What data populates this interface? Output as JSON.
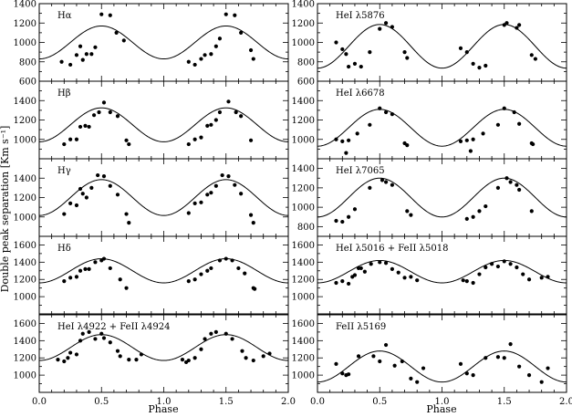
{
  "figure": {
    "ylabel": "Double peak separation [Km s⁻¹]",
    "xlabel": "Phase"
  },
  "chart_data": [
    {
      "type": "scatter",
      "column": "left",
      "row": 0,
      "title": "Hα",
      "xlim": [
        0,
        2
      ],
      "ylim": [
        600,
        1400
      ],
      "yticks": [
        600,
        800,
        1000,
        1200,
        1400
      ],
      "xlabel": "",
      "ylabel": "",
      "fit": {
        "mean": 1000,
        "amplitude": 170,
        "phase_of_max": 0.5
      },
      "points": [
        [
          0.18,
          800
        ],
        [
          0.25,
          770
        ],
        [
          0.3,
          870
        ],
        [
          0.33,
          960
        ],
        [
          0.35,
          820
        ],
        [
          0.38,
          880
        ],
        [
          0.42,
          880
        ],
        [
          0.45,
          950
        ],
        [
          0.5,
          1290
        ],
        [
          0.57,
          1280
        ],
        [
          0.62,
          1100
        ],
        [
          0.68,
          1020
        ],
        [
          1.2,
          800
        ],
        [
          1.25,
          770
        ],
        [
          1.3,
          830
        ],
        [
          1.33,
          870
        ],
        [
          1.38,
          880
        ],
        [
          1.42,
          960
        ],
        [
          1.45,
          1040
        ],
        [
          1.5,
          1290
        ],
        [
          1.57,
          1280
        ],
        [
          1.62,
          1100
        ],
        [
          1.7,
          920
        ],
        [
          1.72,
          830
        ]
      ]
    },
    {
      "type": "scatter",
      "column": "left",
      "row": 1,
      "title": "Hβ",
      "xlim": [
        0,
        2
      ],
      "ylim": [
        800,
        1600
      ],
      "yticks": [
        1000,
        1200,
        1400
      ],
      "xlabel": "",
      "ylabel": "",
      "fit": {
        "mean": 1150,
        "amplitude": 175,
        "phase_of_max": 0.5
      },
      "points": [
        [
          0.2,
          950
        ],
        [
          0.25,
          1000
        ],
        [
          0.3,
          1000
        ],
        [
          0.33,
          1130
        ],
        [
          0.37,
          1140
        ],
        [
          0.4,
          1130
        ],
        [
          0.44,
          1250
        ],
        [
          0.48,
          1280
        ],
        [
          0.52,
          1380
        ],
        [
          0.57,
          1280
        ],
        [
          0.63,
          1240
        ],
        [
          0.7,
          990
        ],
        [
          0.72,
          950
        ],
        [
          1.2,
          950
        ],
        [
          1.25,
          1000
        ],
        [
          1.3,
          1020
        ],
        [
          1.35,
          1140
        ],
        [
          1.38,
          1150
        ],
        [
          1.42,
          1200
        ],
        [
          1.45,
          1280
        ],
        [
          1.52,
          1390
        ],
        [
          1.58,
          1280
        ],
        [
          1.62,
          1240
        ],
        [
          1.7,
          990
        ]
      ]
    },
    {
      "type": "scatter",
      "column": "left",
      "row": 2,
      "title": "Hγ",
      "xlim": [
        0,
        2
      ],
      "ylim": [
        800,
        1600
      ],
      "yticks": [
        1000,
        1200,
        1400
      ],
      "xlabel": "",
      "ylabel": "",
      "fit": {
        "mean": 1200,
        "amplitude": 185,
        "phase_of_max": 0.5
      },
      "points": [
        [
          0.2,
          1030
        ],
        [
          0.25,
          1140
        ],
        [
          0.3,
          1120
        ],
        [
          0.33,
          1290
        ],
        [
          0.35,
          1240
        ],
        [
          0.38,
          1200
        ],
        [
          0.42,
          1300
        ],
        [
          0.47,
          1430
        ],
        [
          0.52,
          1420
        ],
        [
          0.57,
          1320
        ],
        [
          0.63,
          1230
        ],
        [
          0.7,
          1030
        ],
        [
          0.72,
          940
        ],
        [
          1.2,
          1040
        ],
        [
          1.25,
          1140
        ],
        [
          1.3,
          1150
        ],
        [
          1.35,
          1230
        ],
        [
          1.38,
          1250
        ],
        [
          1.42,
          1320
        ],
        [
          1.47,
          1430
        ],
        [
          1.52,
          1420
        ],
        [
          1.57,
          1330
        ],
        [
          1.62,
          1240
        ],
        [
          1.7,
          1020
        ],
        [
          1.72,
          940
        ]
      ]
    },
    {
      "type": "scatter",
      "column": "left",
      "row": 3,
      "title": "Hδ",
      "xlim": [
        0,
        2
      ],
      "ylim": [
        800,
        1700
      ],
      "yticks": [
        1000,
        1200,
        1400,
        1600
      ],
      "xlabel": "",
      "ylabel": "",
      "fit": {
        "mean": 1300,
        "amplitude": 140,
        "phase_of_max": 0.5
      },
      "points": [
        [
          0.2,
          1180
        ],
        [
          0.25,
          1220
        ],
        [
          0.3,
          1230
        ],
        [
          0.33,
          1300
        ],
        [
          0.37,
          1320
        ],
        [
          0.4,
          1320
        ],
        [
          0.45,
          1400
        ],
        [
          0.5,
          1420
        ],
        [
          0.52,
          1440
        ],
        [
          0.57,
          1330
        ],
        [
          0.65,
          1200
        ],
        [
          0.7,
          1100
        ],
        [
          1.2,
          1180
        ],
        [
          1.25,
          1200
        ],
        [
          1.3,
          1260
        ],
        [
          1.35,
          1300
        ],
        [
          1.38,
          1330
        ],
        [
          1.45,
          1420
        ],
        [
          1.5,
          1440
        ],
        [
          1.55,
          1420
        ],
        [
          1.6,
          1330
        ],
        [
          1.65,
          1270
        ],
        [
          1.72,
          1100
        ],
        [
          1.73,
          1090
        ]
      ]
    },
    {
      "type": "scatter",
      "column": "left",
      "row": 4,
      "title": "HeI λ4922 + FeII λ4924",
      "xlim": [
        0,
        2
      ],
      "ylim": [
        800,
        1700
      ],
      "yticks": [
        1000,
        1200,
        1400,
        1600
      ],
      "xlabel": "Phase",
      "ylabel": "",
      "xticks": [
        "0.0",
        "0.5",
        "1.0",
        "1.5",
        "2.0"
      ],
      "fit": {
        "mean": 1320,
        "amplitude": 150,
        "phase_of_max": 0.5
      },
      "points": [
        [
          0.15,
          1180
        ],
        [
          0.2,
          1160
        ],
        [
          0.23,
          1200
        ],
        [
          0.25,
          1260
        ],
        [
          0.3,
          1240
        ],
        [
          0.33,
          1400
        ],
        [
          0.35,
          1480
        ],
        [
          0.4,
          1500
        ],
        [
          0.45,
          1420
        ],
        [
          0.5,
          1480
        ],
        [
          0.52,
          1430
        ],
        [
          0.57,
          1380
        ],
        [
          0.63,
          1280
        ],
        [
          0.65,
          1220
        ],
        [
          0.72,
          1180
        ],
        [
          0.78,
          1180
        ],
        [
          0.82,
          1240
        ],
        [
          1.15,
          1180
        ],
        [
          1.18,
          1150
        ],
        [
          1.2,
          1170
        ],
        [
          1.25,
          1200
        ],
        [
          1.3,
          1300
        ],
        [
          1.33,
          1420
        ],
        [
          1.38,
          1480
        ],
        [
          1.42,
          1500
        ],
        [
          1.5,
          1480
        ],
        [
          1.55,
          1420
        ],
        [
          1.63,
          1280
        ],
        [
          1.66,
          1200
        ],
        [
          1.72,
          1170
        ],
        [
          1.8,
          1220
        ],
        [
          1.85,
          1250
        ]
      ]
    },
    {
      "type": "scatter",
      "column": "right",
      "row": 0,
      "title": "HeI λ5876",
      "xlim": [
        0,
        2
      ],
      "ylim": [
        600,
        1400
      ],
      "yticks": [
        600,
        800,
        1000,
        1200,
        1400
      ],
      "xlabel": "",
      "ylabel": "",
      "fit": {
        "mean": 960,
        "amplitude": 225,
        "phase_of_max": 0.5
      },
      "points": [
        [
          0.15,
          1000
        ],
        [
          0.2,
          930
        ],
        [
          0.23,
          880
        ],
        [
          0.25,
          750
        ],
        [
          0.3,
          780
        ],
        [
          0.35,
          750
        ],
        [
          0.42,
          900
        ],
        [
          0.5,
          1140
        ],
        [
          0.55,
          1200
        ],
        [
          0.6,
          1160
        ],
        [
          0.7,
          900
        ],
        [
          0.72,
          840
        ],
        [
          1.15,
          940
        ],
        [
          1.2,
          900
        ],
        [
          1.25,
          780
        ],
        [
          1.3,
          740
        ],
        [
          1.35,
          760
        ],
        [
          1.5,
          1180
        ],
        [
          1.52,
          1200
        ],
        [
          1.6,
          1150
        ],
        [
          1.62,
          1180
        ],
        [
          1.72,
          870
        ],
        [
          1.75,
          830
        ]
      ]
    },
    {
      "type": "scatter",
      "column": "right",
      "row": 1,
      "title": "HeI λ6678",
      "xlim": [
        0,
        2
      ],
      "ylim": [
        800,
        1600
      ],
      "yticks": [
        1000,
        1200,
        1400
      ],
      "xlabel": "",
      "ylabel": "",
      "fit": {
        "mean": 1120,
        "amplitude": 190,
        "phase_of_max": 0.5
      },
      "points": [
        [
          0.15,
          1000
        ],
        [
          0.2,
          980
        ],
        [
          0.23,
          860
        ],
        [
          0.25,
          990
        ],
        [
          0.32,
          1060
        ],
        [
          0.42,
          1150
        ],
        [
          0.5,
          1320
        ],
        [
          0.55,
          1280
        ],
        [
          0.6,
          1260
        ],
        [
          0.7,
          960
        ],
        [
          0.72,
          940
        ],
        [
          1.15,
          980
        ],
        [
          1.2,
          990
        ],
        [
          1.23,
          880
        ],
        [
          1.25,
          1000
        ],
        [
          1.33,
          1060
        ],
        [
          1.45,
          1150
        ],
        [
          1.5,
          1320
        ],
        [
          1.58,
          1280
        ],
        [
          1.62,
          1160
        ],
        [
          1.72,
          960
        ],
        [
          1.73,
          950
        ]
      ]
    },
    {
      "type": "scatter",
      "column": "right",
      "row": 2,
      "title": "HeI λ7065",
      "xlim": [
        0,
        2
      ],
      "ylim": [
        700,
        1500
      ],
      "yticks": [
        800,
        1000,
        1200,
        1400
      ],
      "xlabel": "",
      "ylabel": "",
      "fit": {
        "mean": 1100,
        "amplitude": 200,
        "phase_of_max": 0.5
      },
      "points": [
        [
          0.15,
          860
        ],
        [
          0.2,
          850
        ],
        [
          0.25,
          900
        ],
        [
          0.3,
          980
        ],
        [
          0.42,
          1200
        ],
        [
          0.52,
          1280
        ],
        [
          0.55,
          1260
        ],
        [
          0.6,
          1230
        ],
        [
          0.72,
          960
        ],
        [
          0.75,
          920
        ],
        [
          1.2,
          880
        ],
        [
          1.25,
          900
        ],
        [
          1.3,
          960
        ],
        [
          1.35,
          1010
        ],
        [
          1.45,
          1200
        ],
        [
          1.52,
          1300
        ],
        [
          1.55,
          1260
        ],
        [
          1.6,
          1230
        ],
        [
          1.62,
          1180
        ],
        [
          1.72,
          960
        ]
      ]
    },
    {
      "type": "scatter",
      "column": "right",
      "row": 3,
      "title": "HeI λ5016 + FeII λ5018",
      "xlim": [
        0,
        2
      ],
      "ylim": [
        800,
        1700
      ],
      "yticks": [
        1000,
        1200,
        1400,
        1600
      ],
      "xlabel": "",
      "ylabel": "",
      "fit": {
        "mean": 1290,
        "amplitude": 130,
        "phase_of_max": 0.5
      },
      "points": [
        [
          0.15,
          1160
        ],
        [
          0.2,
          1180
        ],
        [
          0.25,
          1150
        ],
        [
          0.28,
          1230
        ],
        [
          0.3,
          1250
        ],
        [
          0.33,
          1330
        ],
        [
          0.35,
          1330
        ],
        [
          0.38,
          1290
        ],
        [
          0.43,
          1380
        ],
        [
          0.5,
          1400
        ],
        [
          0.55,
          1390
        ],
        [
          0.6,
          1320
        ],
        [
          0.65,
          1280
        ],
        [
          0.7,
          1220
        ],
        [
          0.75,
          1230
        ],
        [
          0.8,
          1190
        ],
        [
          1.17,
          1190
        ],
        [
          1.2,
          1180
        ],
        [
          1.25,
          1160
        ],
        [
          1.3,
          1260
        ],
        [
          1.35,
          1340
        ],
        [
          1.4,
          1380
        ],
        [
          1.45,
          1350
        ],
        [
          1.5,
          1410
        ],
        [
          1.55,
          1380
        ],
        [
          1.6,
          1340
        ],
        [
          1.65,
          1260
        ],
        [
          1.7,
          1200
        ],
        [
          1.8,
          1220
        ],
        [
          1.85,
          1230
        ]
      ]
    },
    {
      "type": "scatter",
      "column": "right",
      "row": 4,
      "title": "FeII λ5169",
      "xlim": [
        0,
        2
      ],
      "ylim": [
        800,
        1700
      ],
      "yticks": [
        1000,
        1200,
        1400,
        1600
      ],
      "xlabel": "Phase",
      "ylabel": "",
      "xticks": [
        "0.0",
        "0.5",
        "1.0",
        "1.5",
        "2.0"
      ],
      "fit": {
        "mean": 1100,
        "amplitude": 180,
        "phase_of_max": 0.5
      },
      "points": [
        [
          0.15,
          1130
        ],
        [
          0.2,
          1020
        ],
        [
          0.23,
          1000
        ],
        [
          0.25,
          1010
        ],
        [
          0.33,
          1220
        ],
        [
          0.45,
          1220
        ],
        [
          0.5,
          1160
        ],
        [
          0.55,
          1350
        ],
        [
          0.62,
          1110
        ],
        [
          0.68,
          1160
        ],
        [
          0.75,
          960
        ],
        [
          0.8,
          920
        ],
        [
          0.85,
          1080
        ],
        [
          1.15,
          1130
        ],
        [
          1.2,
          1020
        ],
        [
          1.25,
          1000
        ],
        [
          1.35,
          1200
        ],
        [
          1.45,
          1210
        ],
        [
          1.5,
          1200
        ],
        [
          1.55,
          1360
        ],
        [
          1.62,
          1100
        ],
        [
          1.7,
          1000
        ],
        [
          1.8,
          920
        ],
        [
          1.85,
          1080
        ]
      ]
    }
  ]
}
